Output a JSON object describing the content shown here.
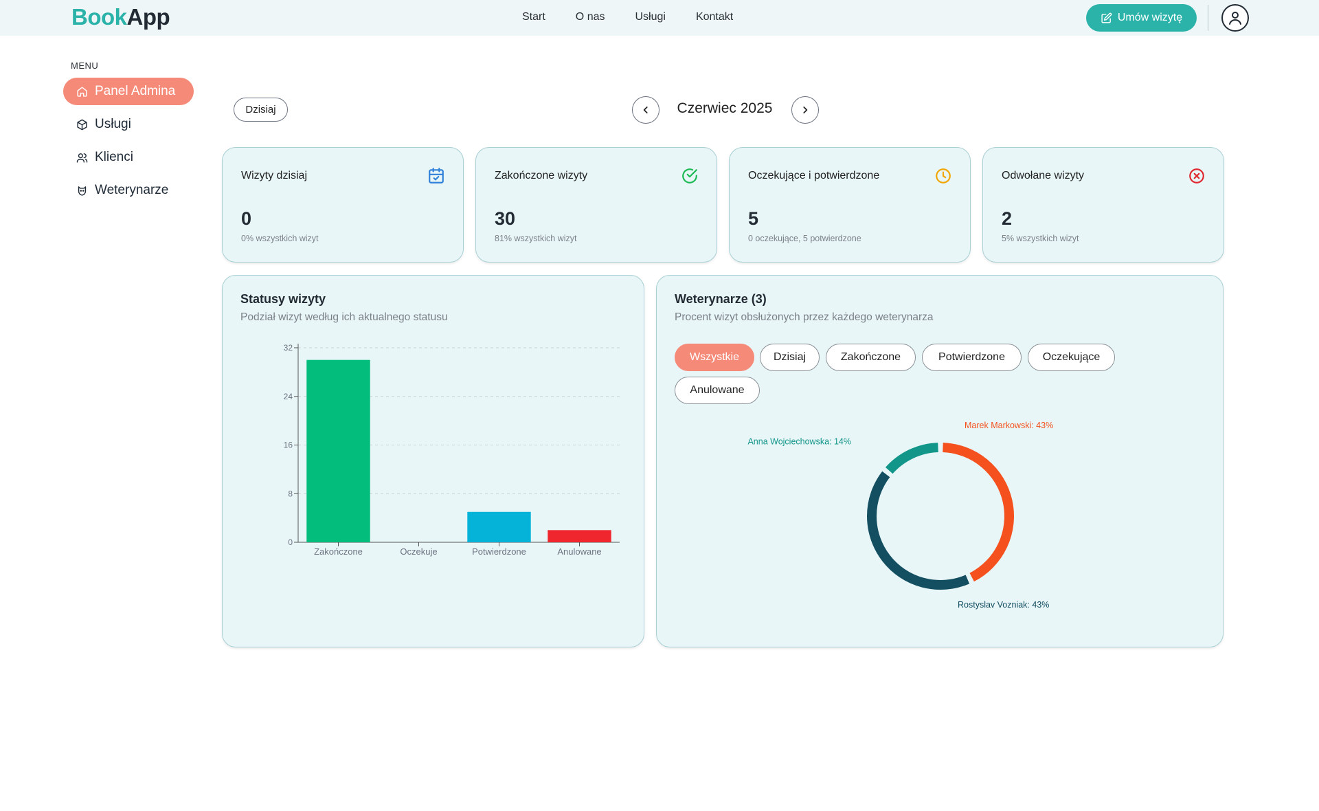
{
  "brand": {
    "part1": "Book",
    "part2": "App"
  },
  "nav": [
    "Start",
    "O nas",
    "Usługi",
    "Kontakt"
  ],
  "header": {
    "book_button": "Umów wizytę"
  },
  "sidebar": {
    "menu_label": "MENU",
    "items": [
      {
        "label": "Panel Admina",
        "icon": "home-icon",
        "active": true
      },
      {
        "label": "Usługi",
        "icon": "box-icon",
        "active": false
      },
      {
        "label": "Klienci",
        "icon": "users-icon",
        "active": false
      },
      {
        "label": "Weterynarze",
        "icon": "pet-icon",
        "active": false
      }
    ]
  },
  "date_bar": {
    "today_label": "Dzisiaj",
    "month": "Czerwiec 2025"
  },
  "stats": [
    {
      "title": "Wizyty dzisiaj",
      "value": "0",
      "sub": "0% wszystkich wizyt",
      "icon": "calendar-check-icon",
      "color": "#2f80d8"
    },
    {
      "title": "Zakończone wizyty",
      "value": "30",
      "sub": "81% wszystkich wizyt",
      "icon": "check-circle-icon",
      "color": "#1db954"
    },
    {
      "title": "Oczekujące i potwierdzone",
      "value": "5",
      "sub": "0 oczekujące, 5 potwierdzone",
      "icon": "clock-icon",
      "color": "#f0a500"
    },
    {
      "title": "Odwołane wizyty",
      "value": "2",
      "sub": "5% wszystkich wizyt",
      "icon": "x-circle-icon",
      "color": "#e0282e"
    }
  ],
  "status_panel": {
    "title": "Statusy wizyty",
    "subtitle": "Podział wizyt według ich aktualnego statusu"
  },
  "vets_panel": {
    "title": "Weterynarze (3)",
    "subtitle": "Procent wizyt obsłużonych przez każdego weterynarza",
    "filters": [
      {
        "label": "Wszystkie",
        "active": true
      },
      {
        "label": "Dzisiaj",
        "active": false
      },
      {
        "label": "Zakończone",
        "active": false
      },
      {
        "label": "Potwierdzone",
        "active": false
      },
      {
        "label": "Oczekujące",
        "active": false
      },
      {
        "label": "Anulowane",
        "active": false
      }
    ]
  },
  "chart_data": [
    {
      "type": "bar",
      "categories": [
        "Zakończone",
        "Oczekuje",
        "Potwierdzone",
        "Anulowane"
      ],
      "values": [
        30,
        0,
        5,
        2
      ],
      "colors": [
        "#02bd7c",
        "#f5a300",
        "#06b3d8",
        "#f0262f"
      ],
      "yticks": [
        "0",
        "8",
        "16",
        "24",
        "32"
      ],
      "ylim": [
        0,
        32
      ],
      "grid": true
    },
    {
      "type": "pie",
      "categories": [
        "Marek Markowski",
        "Rostyslav Vozniak",
        "Anna Wojciechowska"
      ],
      "values": [
        43,
        43,
        14
      ],
      "labels": [
        "Marek Markowski: 43%",
        "Rostyslav Vozniak: 43%",
        "Anna Wojciechowska: 14%"
      ],
      "colors": [
        "#f4511e",
        "#134e61",
        "#12968a"
      ]
    }
  ]
}
